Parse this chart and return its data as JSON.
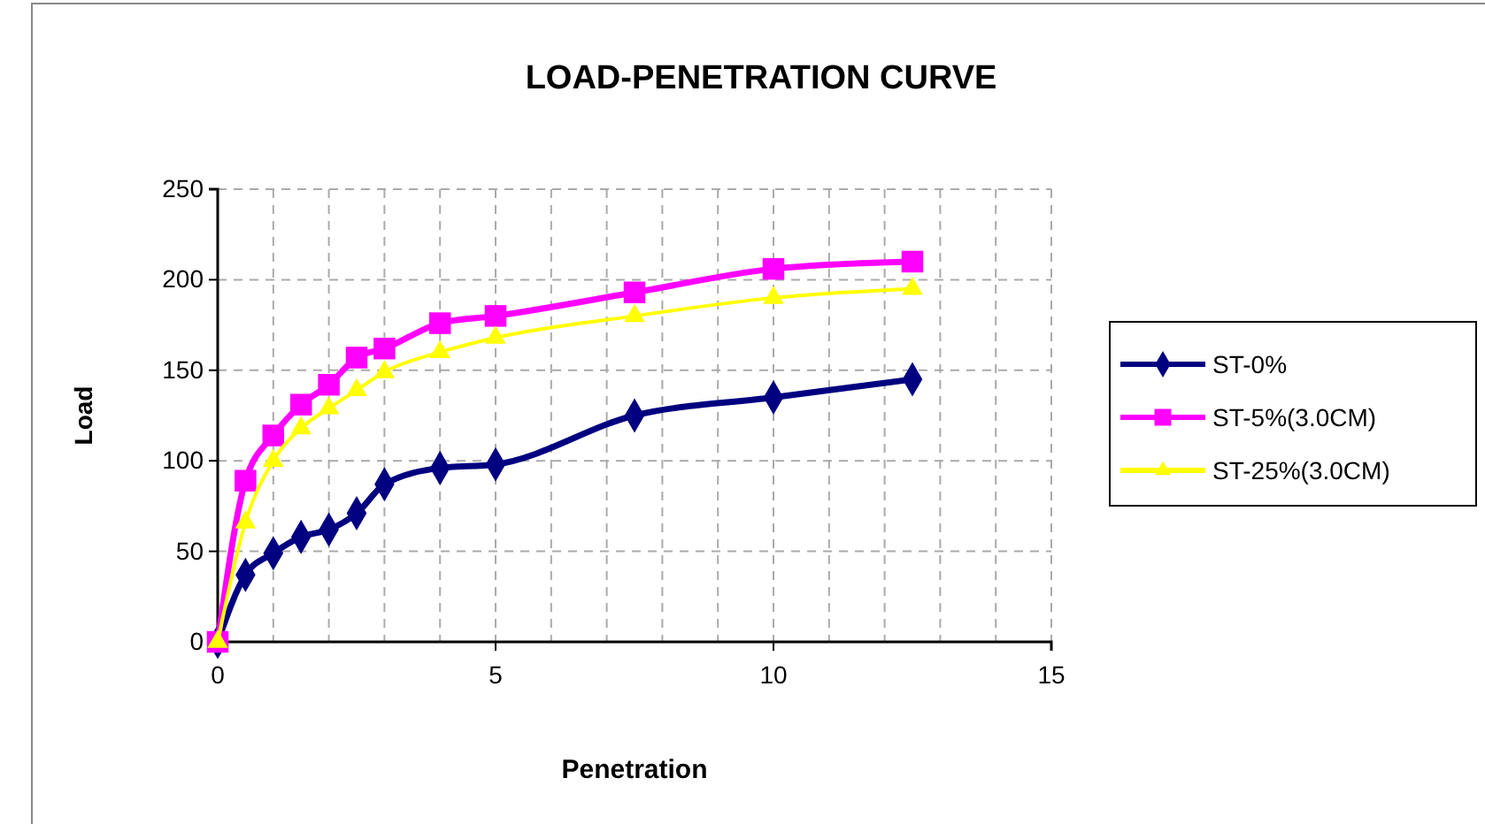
{
  "chart_data": {
    "type": "line",
    "title": "LOAD-PENETRATION CURVE",
    "xlabel": "Penetration",
    "ylabel": "Load",
    "xlim": [
      0,
      15
    ],
    "xticks": [
      0,
      {
        "value": 1,
        "label": null
      },
      {
        "value": 2,
        "label": null
      },
      {
        "value": 3,
        "label": null
      },
      {
        "value": 4,
        "label": null
      },
      5,
      {
        "value": 6,
        "label": null
      },
      {
        "value": 7,
        "label": null
      },
      {
        "value": 8,
        "label": null
      },
      {
        "value": 9,
        "label": null
      },
      10,
      {
        "value": 11,
        "label": null
      },
      {
        "value": 12,
        "label": null
      },
      {
        "value": 13,
        "label": null
      },
      {
        "value": 14,
        "label": null
      },
      15
    ],
    "ylim": [
      0,
      250
    ],
    "yticks": [
      0,
      50,
      100,
      150,
      200,
      250
    ],
    "grid": true,
    "legend": "right",
    "line_style": "solid",
    "x": [
      0,
      0.5,
      1,
      1.5,
      2,
      2.5,
      3,
      4,
      5,
      7.5,
      10,
      12.5
    ],
    "series": [
      {
        "name": "ST-0%",
        "color": "#000080",
        "marker": "diamond",
        "values": [
          0,
          37,
          49,
          58,
          62,
          71,
          87,
          96,
          98,
          125,
          135,
          145
        ]
      },
      {
        "name": "ST-5%(3.0CM)",
        "color": "#ff00ff",
        "marker": "square",
        "values": [
          0,
          89,
          114,
          131,
          142,
          157,
          162,
          176,
          180,
          193,
          206,
          210
        ]
      },
      {
        "name": "ST-25%(3.0CM)",
        "color": "#ffff00",
        "marker": "triangle",
        "values": [
          0,
          66,
          100,
          118,
          129,
          139,
          149,
          160,
          168,
          180,
          190,
          195
        ]
      }
    ]
  }
}
